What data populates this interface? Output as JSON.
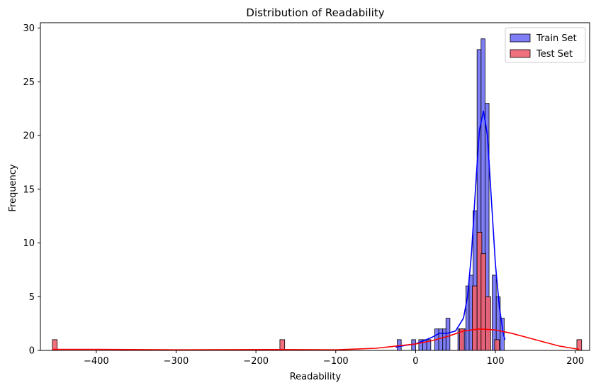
{
  "chart_data": {
    "type": "histogram",
    "title": "Distribution of Readability",
    "xlabel": "Readability",
    "ylabel": "Frequency",
    "xlim": [
      -470,
      218
    ],
    "ylim": [
      0,
      30.5
    ],
    "xticks": [
      -400,
      -300,
      -200,
      -100,
      0,
      100,
      200
    ],
    "yticks": [
      0,
      5,
      10,
      15,
      20,
      25,
      30
    ],
    "xtick_labels": [
      "−400",
      "−300",
      "−200",
      "−100",
      "0",
      "100",
      "200"
    ],
    "ytick_labels": [
      "0",
      "5",
      "10",
      "15",
      "20",
      "25",
      "30"
    ],
    "legend_position": "top-right",
    "series": [
      {
        "name": "Train Set",
        "color": "#0000ff",
        "fill_color": "#7070f5",
        "bin_width": 5,
        "bins": [
          {
            "x0": -23,
            "count": 1
          },
          {
            "x0": -5,
            "count": 1
          },
          {
            "x0": 4,
            "count": 1
          },
          {
            "x0": 9,
            "count": 1
          },
          {
            "x0": 14,
            "count": 1
          },
          {
            "x0": 24,
            "count": 2
          },
          {
            "x0": 29,
            "count": 2
          },
          {
            "x0": 34,
            "count": 2
          },
          {
            "x0": 38,
            "count": 3
          },
          {
            "x0": 53,
            "count": 2
          },
          {
            "x0": 58,
            "count": 2
          },
          {
            "x0": 63,
            "count": 6
          },
          {
            "x0": 67,
            "count": 7
          },
          {
            "x0": 72,
            "count": 13
          },
          {
            "x0": 77,
            "count": 28
          },
          {
            "x0": 82,
            "count": 29
          },
          {
            "x0": 87,
            "count": 23
          },
          {
            "x0": 96,
            "count": 7
          },
          {
            "x0": 101,
            "count": 5
          },
          {
            "x0": 106,
            "count": 3
          }
        ],
        "kde": [
          [
            -25,
            0.3
          ],
          [
            -10,
            0.5
          ],
          [
            0,
            0.6
          ],
          [
            10,
            0.9
          ],
          [
            20,
            1.2
          ],
          [
            30,
            1.6
          ],
          [
            40,
            1.6
          ],
          [
            50,
            1.8
          ],
          [
            60,
            3.0
          ],
          [
            65,
            5.0
          ],
          [
            70,
            9.0
          ],
          [
            75,
            15.0
          ],
          [
            80,
            20.5
          ],
          [
            85,
            22.3
          ],
          [
            90,
            20.0
          ],
          [
            95,
            14.0
          ],
          [
            100,
            8.0
          ],
          [
            105,
            4.0
          ],
          [
            110,
            1.5
          ],
          [
            112,
            1.0
          ]
        ]
      },
      {
        "name": "Test Set",
        "color": "#ff0000",
        "fill_color": "#f06070",
        "bin_width": 6,
        "bins": [
          {
            "x0": -455,
            "count": 1
          },
          {
            "x0": -170,
            "count": 1
          },
          {
            "x0": 55,
            "count": 2
          },
          {
            "x0": 71,
            "count": 6
          },
          {
            "x0": 77,
            "count": 11
          },
          {
            "x0": 82,
            "count": 9
          },
          {
            "x0": 88,
            "count": 5
          },
          {
            "x0": 99,
            "count": 1
          },
          {
            "x0": 202,
            "count": 1
          }
        ],
        "kde": [
          [
            -455,
            0.1
          ],
          [
            -400,
            0.1
          ],
          [
            -300,
            0.05
          ],
          [
            -170,
            0.08
          ],
          [
            -100,
            0.05
          ],
          [
            -50,
            0.2
          ],
          [
            0,
            0.6
          ],
          [
            20,
            0.9
          ],
          [
            40,
            1.3
          ],
          [
            60,
            1.8
          ],
          [
            80,
            2.0
          ],
          [
            100,
            1.9
          ],
          [
            120,
            1.6
          ],
          [
            150,
            1.0
          ],
          [
            180,
            0.4
          ],
          [
            205,
            0.1
          ]
        ]
      }
    ]
  }
}
